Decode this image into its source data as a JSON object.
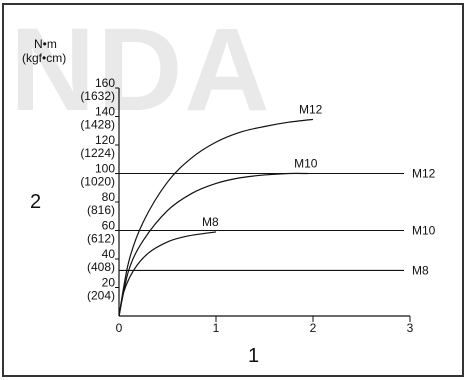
{
  "watermark_text": "NDA",
  "chart_data": {
    "type": "line",
    "y_unit_primary": "N•m",
    "y_unit_secondary": "(kgf•cm)",
    "x_axis_number": "1",
    "y_axis_number": "2",
    "xlim": [
      0,
      3
    ],
    "ylim": [
      0,
      160
    ],
    "x_ticks": [
      {
        "value": 0,
        "label": "0"
      },
      {
        "value": 1,
        "label": "1"
      },
      {
        "value": 2,
        "label": "2"
      },
      {
        "value": 3,
        "label": "3"
      }
    ],
    "y_ticks": [
      {
        "value": 20,
        "label": "20",
        "sub": "(204)"
      },
      {
        "value": 40,
        "label": "40",
        "sub": "(408)"
      },
      {
        "value": 60,
        "label": "60",
        "sub": "(612)"
      },
      {
        "value": 80,
        "label": "80",
        "sub": "(816)"
      },
      {
        "value": 100,
        "label": "100",
        "sub": "(1020)"
      },
      {
        "value": 120,
        "label": "120",
        "sub": "(1224)"
      },
      {
        "value": 140,
        "label": "140",
        "sub": "(1428)"
      },
      {
        "value": 160,
        "label": "160",
        "sub": "(1632)"
      }
    ],
    "curves": [
      {
        "name": "M12",
        "x": [
          0,
          0.1,
          0.25,
          0.5,
          0.75,
          1.0,
          1.25,
          1.5,
          1.75,
          2.0
        ],
        "y": [
          0,
          38,
          66,
          94,
          111,
          122,
          129,
          133,
          136,
          138
        ]
      },
      {
        "name": "M10",
        "x": [
          0,
          0.1,
          0.25,
          0.5,
          0.75,
          1.0,
          1.25,
          1.5,
          1.75,
          1.95
        ],
        "y": [
          0,
          32,
          53,
          74,
          86,
          93,
          97,
          99,
          100,
          100
        ]
      },
      {
        "name": "M8",
        "x": [
          0,
          0.05,
          0.15,
          0.3,
          0.5,
          0.7,
          1.0
        ],
        "y": [
          0,
          17,
          32,
          44,
          52,
          56,
          59
        ]
      }
    ],
    "levels": [
      {
        "name": "M12",
        "y": 100
      },
      {
        "name": "M10",
        "y": 60
      },
      {
        "name": "M8",
        "y": 32
      }
    ]
  }
}
